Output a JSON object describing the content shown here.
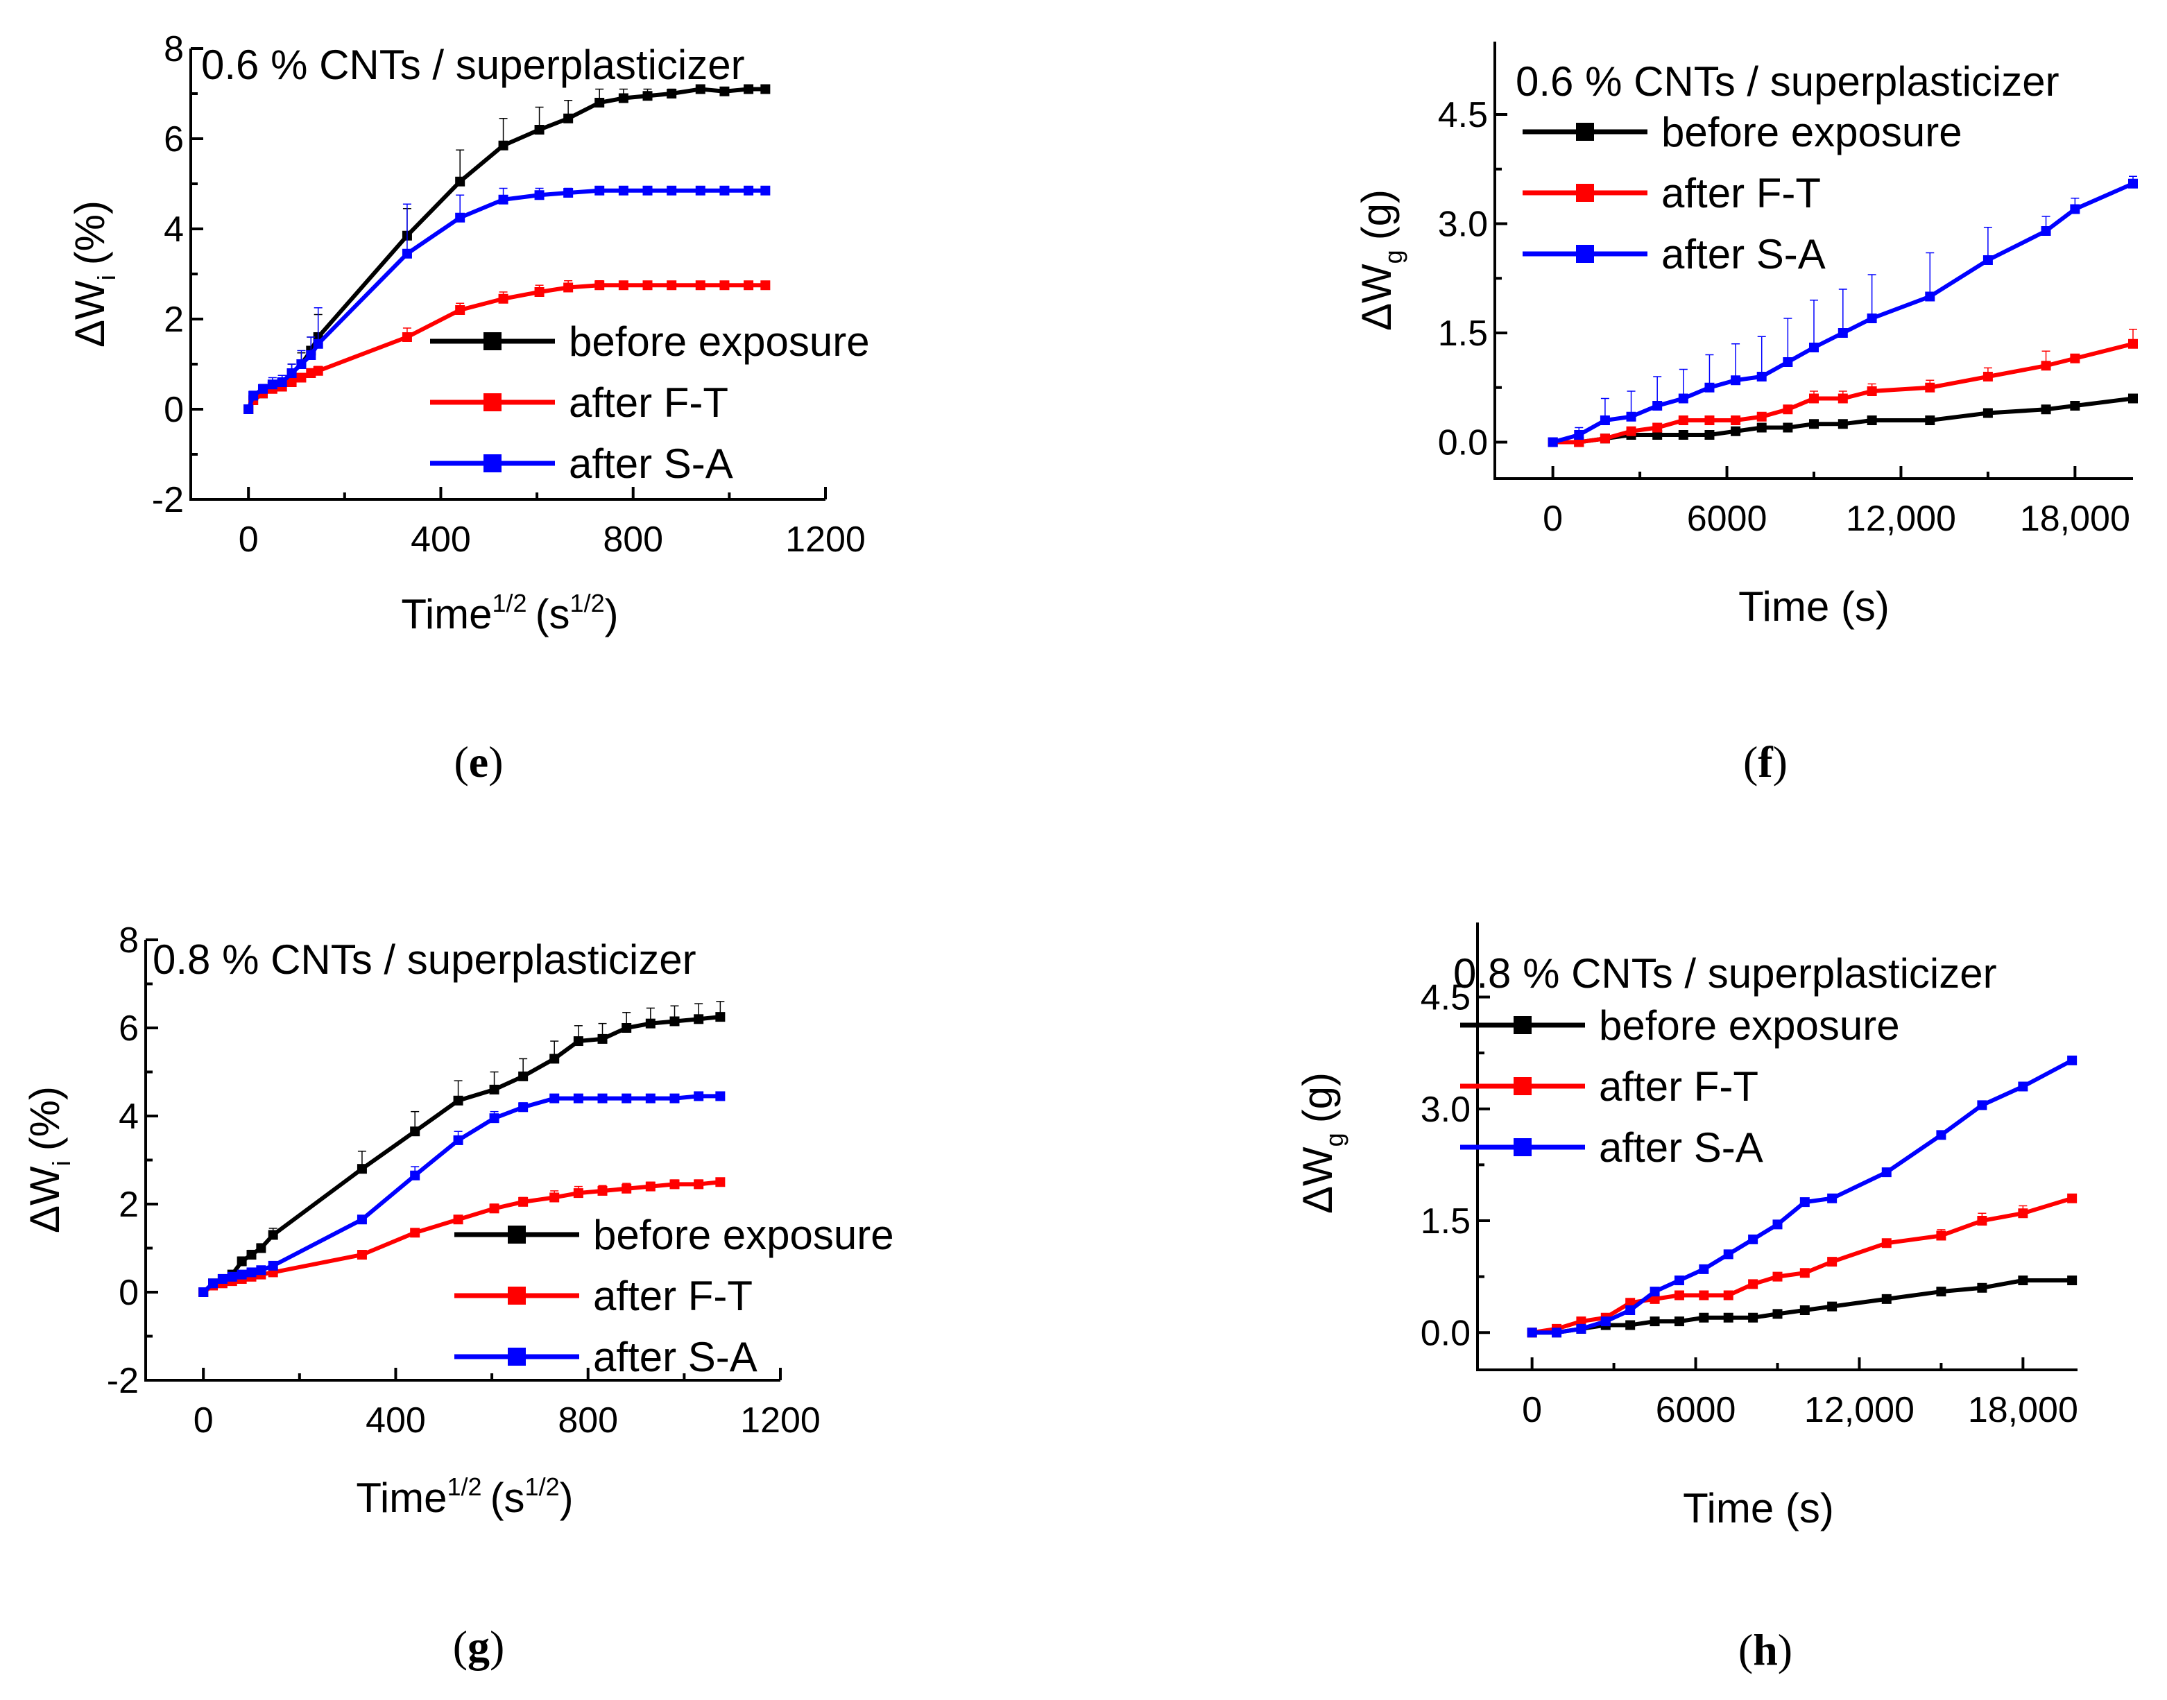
{
  "chart_data": [
    {
      "type": "line",
      "panel_label": "e",
      "title": "0.6 % CNTs / superplasticizer",
      "xlabel": "Time",
      "xlabel_sup": "1/2",
      "xlabel_unit_open": "(s",
      "xlabel_unit_sup": "1/2",
      "xlabel_unit_close": ")",
      "ylabel": "ΔW",
      "ylabel_sub": "i",
      "ylabel_unit": "(%)",
      "xlim": [
        -120,
        1200
      ],
      "ylim": [
        -2,
        8
      ],
      "xticks": [
        0,
        400,
        800,
        1200
      ],
      "yticks": [
        -2,
        0,
        2,
        4,
        6,
        8
      ],
      "legend": "center-right",
      "series": [
        {
          "name": "before exposure",
          "color": "#000000",
          "x": [
            0,
            10,
            30,
            50,
            70,
            90,
            110,
            130,
            145,
            330,
            440,
            530,
            605,
            665,
            730,
            780,
            830,
            880,
            940,
            990,
            1040,
            1075
          ],
          "y": [
            0,
            0.2,
            0.35,
            0.5,
            0.6,
            0.8,
            1.0,
            1.3,
            1.6,
            3.85,
            5.05,
            5.85,
            6.2,
            6.45,
            6.8,
            6.9,
            6.95,
            7.0,
            7.1,
            7.05,
            7.1,
            7.1
          ],
          "err": [
            0,
            0.1,
            0.1,
            0.1,
            0.15,
            0.2,
            0.25,
            0.3,
            0.5,
            0.6,
            0.7,
            0.6,
            0.5,
            0.4,
            0.3,
            0.2,
            0.15,
            0.1,
            0.08,
            0.05,
            0.05,
            0.05
          ]
        },
        {
          "name": "after F-T",
          "color": "#ff0000",
          "x": [
            0,
            10,
            30,
            50,
            70,
            90,
            110,
            130,
            145,
            330,
            440,
            530,
            605,
            665,
            730,
            780,
            830,
            880,
            940,
            990,
            1040,
            1075
          ],
          "y": [
            0,
            0.2,
            0.35,
            0.45,
            0.5,
            0.6,
            0.7,
            0.8,
            0.85,
            1.6,
            2.2,
            2.45,
            2.6,
            2.7,
            2.75,
            2.75,
            2.75,
            2.75,
            2.75,
            2.75,
            2.75,
            2.75
          ],
          "err": [
            0,
            0.05,
            0.05,
            0.05,
            0.05,
            0.05,
            0.05,
            0.1,
            0.1,
            0.2,
            0.15,
            0.15,
            0.15,
            0.15,
            0.1,
            0.08,
            0.05,
            0.05,
            0.05,
            0.05,
            0.05,
            0.05
          ]
        },
        {
          "name": "after S-A",
          "color": "#0000ff",
          "x": [
            0,
            10,
            30,
            50,
            70,
            90,
            110,
            130,
            145,
            330,
            440,
            530,
            605,
            665,
            730,
            780,
            830,
            880,
            940,
            990,
            1040,
            1075
          ],
          "y": [
            0,
            0.3,
            0.45,
            0.55,
            0.6,
            0.8,
            1.0,
            1.2,
            1.45,
            3.45,
            4.25,
            4.65,
            4.75,
            4.8,
            4.85,
            4.85,
            4.85,
            4.85,
            4.85,
            4.85,
            4.85,
            4.85
          ],
          "err": [
            0,
            0.1,
            0.1,
            0.15,
            0.15,
            0.2,
            0.3,
            0.4,
            0.8,
            1.1,
            0.5,
            0.25,
            0.15,
            0.1,
            0.08,
            0.05,
            0.05,
            0.05,
            0.05,
            0.05,
            0.05,
            0.05
          ]
        }
      ]
    },
    {
      "type": "line",
      "panel_label": "f",
      "title": "0.6 % CNTs / superplasticizer",
      "xlabel": "Time (s)",
      "ylabel": "ΔW",
      "ylabel_sub": "g",
      "ylabel_unit": "(g)",
      "xlim": [
        -2000,
        20000
      ],
      "ylim": [
        -0.5,
        5.5
      ],
      "xticks": [
        0,
        6000,
        12000,
        18000
      ],
      "xtick_labels": [
        "0",
        "6000",
        "12,000",
        "18,000"
      ],
      "yticks": [
        0.0,
        1.5,
        3.0,
        4.5
      ],
      "ytick_labels": [
        "0.0",
        "1.5",
        "3.0",
        "4.5"
      ],
      "legend": "top-left",
      "series": [
        {
          "name": "before exposure",
          "color": "#000000",
          "x": [
            0,
            900,
            1800,
            2700,
            3600,
            4500,
            5400,
            6300,
            7200,
            8100,
            9000,
            10000,
            11000,
            13000,
            15000,
            17000,
            18000,
            20000
          ],
          "y": [
            0,
            0,
            0.05,
            0.1,
            0.1,
            0.1,
            0.1,
            0.15,
            0.2,
            0.2,
            0.25,
            0.25,
            0.3,
            0.3,
            0.4,
            0.45,
            0.5,
            0.6
          ],
          "err": [
            0,
            0,
            0,
            0,
            0,
            0,
            0,
            0,
            0,
            0,
            0,
            0,
            0,
            0,
            0,
            0,
            0,
            0.05
          ]
        },
        {
          "name": "after F-T",
          "color": "#ff0000",
          "x": [
            0,
            900,
            1800,
            2700,
            3600,
            4500,
            5400,
            6300,
            7200,
            8100,
            9000,
            10000,
            11000,
            13000,
            15000,
            17000,
            18000,
            20000
          ],
          "y": [
            0,
            0,
            0.05,
            0.15,
            0.2,
            0.3,
            0.3,
            0.3,
            0.35,
            0.45,
            0.6,
            0.6,
            0.7,
            0.75,
            0.9,
            1.05,
            1.15,
            1.35
          ],
          "err": [
            0,
            0,
            0,
            0.05,
            0.05,
            0.05,
            0.05,
            0.05,
            0.05,
            0.05,
            0.1,
            0.1,
            0.1,
            0.1,
            0.12,
            0.2,
            0.05,
            0.2
          ]
        },
        {
          "name": "after S-A",
          "color": "#0000ff",
          "x": [
            0,
            900,
            1800,
            2700,
            3600,
            4500,
            5400,
            6300,
            7200,
            8100,
            9000,
            10000,
            11000,
            13000,
            15000,
            17000,
            18000,
            20000
          ],
          "y": [
            0,
            0.1,
            0.3,
            0.35,
            0.5,
            0.6,
            0.75,
            0.85,
            0.9,
            1.1,
            1.3,
            1.5,
            1.7,
            2.0,
            2.5,
            2.9,
            3.2,
            3.55
          ],
          "err": [
            0,
            0.1,
            0.3,
            0.35,
            0.4,
            0.4,
            0.45,
            0.5,
            0.55,
            0.6,
            0.65,
            0.6,
            0.6,
            0.6,
            0.45,
            0.2,
            0.15,
            0.1
          ]
        }
      ]
    },
    {
      "type": "line",
      "panel_label": "g",
      "title": "0.8 % CNTs / superplasticizer",
      "xlabel": "Time",
      "xlabel_sup": "1/2",
      "xlabel_unit_open": "(s",
      "xlabel_unit_sup": "1/2",
      "xlabel_unit_close": ")",
      "ylabel": "ΔW",
      "ylabel_sub": "i",
      "ylabel_unit": "(%)",
      "xlim": [
        -120,
        1200
      ],
      "ylim": [
        -2,
        8
      ],
      "xticks": [
        0,
        400,
        800,
        1200
      ],
      "yticks": [
        -2,
        0,
        2,
        4,
        6,
        8
      ],
      "legend": "center-right",
      "series": [
        {
          "name": "before exposure",
          "color": "#000000",
          "x": [
            0,
            20,
            40,
            60,
            80,
            100,
            120,
            145,
            330,
            440,
            530,
            605,
            665,
            730,
            780,
            830,
            880,
            930,
            980,
            1030,
            1075
          ],
          "y": [
            0,
            0.2,
            0.3,
            0.4,
            0.7,
            0.85,
            1.0,
            1.3,
            2.8,
            3.65,
            4.35,
            4.6,
            4.9,
            5.3,
            5.7,
            5.75,
            6.0,
            6.1,
            6.15,
            6.2,
            6.25
          ],
          "err": [
            0,
            0.05,
            0.05,
            0.05,
            0.1,
            0.1,
            0.1,
            0.15,
            0.4,
            0.45,
            0.45,
            0.4,
            0.4,
            0.4,
            0.35,
            0.35,
            0.35,
            0.35,
            0.35,
            0.35,
            0.35
          ]
        },
        {
          "name": "after F-T",
          "color": "#ff0000",
          "x": [
            0,
            20,
            40,
            60,
            80,
            100,
            120,
            145,
            330,
            440,
            530,
            605,
            665,
            730,
            780,
            830,
            880,
            930,
            980,
            1030,
            1075
          ],
          "y": [
            0,
            0.15,
            0.2,
            0.25,
            0.3,
            0.35,
            0.4,
            0.45,
            0.85,
            1.35,
            1.65,
            1.9,
            2.05,
            2.15,
            2.25,
            2.3,
            2.35,
            2.4,
            2.45,
            2.45,
            2.5
          ],
          "err": [
            0,
            0.03,
            0.03,
            0.03,
            0.03,
            0.03,
            0.03,
            0.05,
            0.05,
            0.05,
            0.08,
            0.1,
            0.1,
            0.15,
            0.15,
            0.12,
            0.12,
            0.1,
            0.1,
            0.1,
            0.08
          ]
        },
        {
          "name": "after S-A",
          "color": "#0000ff",
          "x": [
            0,
            20,
            40,
            60,
            80,
            100,
            120,
            145,
            330,
            440,
            530,
            605,
            665,
            730,
            780,
            830,
            880,
            930,
            980,
            1030,
            1075
          ],
          "y": [
            0,
            0.2,
            0.3,
            0.35,
            0.4,
            0.45,
            0.5,
            0.6,
            1.65,
            2.65,
            3.45,
            3.95,
            4.2,
            4.4,
            4.4,
            4.4,
            4.4,
            4.4,
            4.4,
            4.45,
            4.45
          ],
          "err": [
            0,
            0.03,
            0.03,
            0.03,
            0.03,
            0.03,
            0.05,
            0.05,
            0.08,
            0.2,
            0.2,
            0.15,
            0.1,
            0.05,
            0.05,
            0.05,
            0.05,
            0.05,
            0.05,
            0.05,
            0.05
          ]
        }
      ]
    },
    {
      "type": "line",
      "panel_label": "h",
      "title": "0.8 % CNTs / superplasticizer",
      "xlabel": "Time (s)",
      "ylabel": "ΔW",
      "ylabel_sub": "g",
      "ylabel_unit": "(g)",
      "xlim": [
        -2000,
        20000
      ],
      "ylim": [
        -0.5,
        5.5
      ],
      "xticks": [
        0,
        6000,
        12000,
        18000
      ],
      "xtick_labels": [
        "0",
        "6000",
        "12,000",
        "18,000"
      ],
      "yticks": [
        0.0,
        1.5,
        3.0,
        4.5
      ],
      "ytick_labels": [
        "0.0",
        "1.5",
        "3.0",
        "4.5"
      ],
      "legend": "top-left",
      "series": [
        {
          "name": "before exposure",
          "color": "#000000",
          "x": [
            0,
            900,
            1800,
            2700,
            3600,
            4500,
            5400,
            6300,
            7200,
            8100,
            9000,
            10000,
            11000,
            13000,
            15000,
            16500,
            18000,
            19800
          ],
          "y": [
            0,
            0,
            0.05,
            0.1,
            0.1,
            0.15,
            0.15,
            0.2,
            0.2,
            0.2,
            0.25,
            0.3,
            0.35,
            0.45,
            0.55,
            0.6,
            0.7,
            0.7
          ],
          "err": [
            0,
            0,
            0,
            0,
            0,
            0,
            0,
            0,
            0,
            0,
            0,
            0,
            0,
            0,
            0,
            0,
            0.03,
            0.03
          ]
        },
        {
          "name": "after F-T",
          "color": "#ff0000",
          "x": [
            0,
            900,
            1800,
            2700,
            3600,
            4500,
            5400,
            6300,
            7200,
            8100,
            9000,
            10000,
            11000,
            13000,
            15000,
            16500,
            18000,
            19800
          ],
          "y": [
            0,
            0.05,
            0.15,
            0.2,
            0.4,
            0.45,
            0.5,
            0.5,
            0.5,
            0.65,
            0.75,
            0.8,
            0.95,
            1.2,
            1.3,
            1.5,
            1.6,
            1.8
          ],
          "err": [
            0,
            0,
            0.02,
            0.03,
            0.05,
            0.05,
            0.05,
            0.05,
            0.05,
            0.05,
            0.05,
            0.05,
            0.05,
            0.05,
            0.08,
            0.1,
            0.1,
            0.05
          ]
        },
        {
          "name": "after S-A",
          "color": "#0000ff",
          "x": [
            0,
            900,
            1800,
            2700,
            3600,
            4500,
            5400,
            6300,
            7200,
            8100,
            9000,
            10000,
            11000,
            13000,
            15000,
            16500,
            18000,
            19800
          ],
          "y": [
            0,
            0,
            0.05,
            0.15,
            0.3,
            0.55,
            0.7,
            0.85,
            1.05,
            1.25,
            1.45,
            1.75,
            1.8,
            2.15,
            2.65,
            3.05,
            3.3,
            3.65
          ],
          "err": [
            0,
            0,
            0,
            0,
            0,
            0,
            0,
            0,
            0,
            0,
            0,
            0,
            0,
            0,
            0,
            0,
            0,
            0
          ]
        }
      ]
    }
  ]
}
